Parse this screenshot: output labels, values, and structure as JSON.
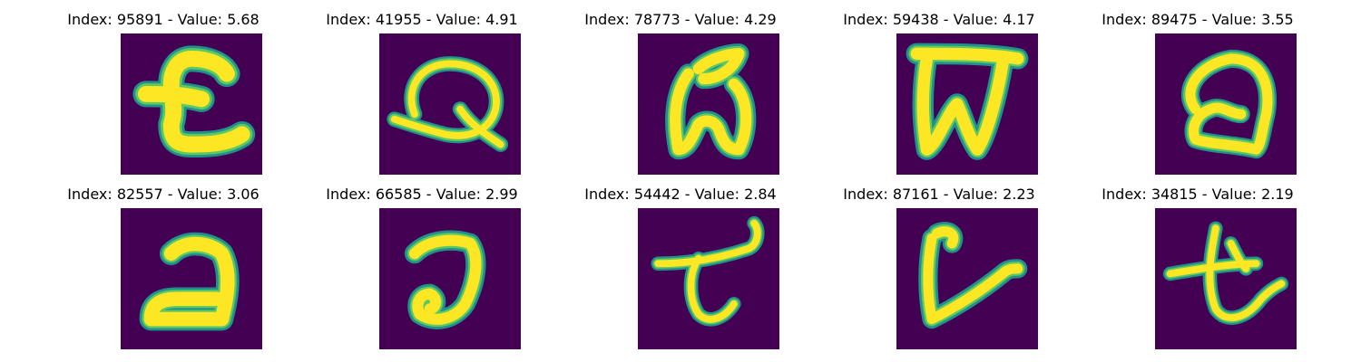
{
  "panels": [
    {
      "title": "Index: 95891 - Value: 5.68",
      "glyph": "pound-like-glyph"
    },
    {
      "title": "Index: 41955 - Value: 4.91",
      "glyph": "q-like-glyph"
    },
    {
      "title": "Index: 78773 - Value: 4.29",
      "glyph": "w-like-glyph"
    },
    {
      "title": "Index: 59438 - Value: 4.17",
      "glyph": "w-box-glyph"
    },
    {
      "title": "Index: 89475 - Value: 3.55",
      "glyph": "loop-glyph"
    },
    {
      "title": "Index: 82557 - Value: 3.06",
      "glyph": "reverse-c-glyph"
    },
    {
      "title": "Index: 66585 - Value: 2.99",
      "glyph": "reverse-c-hook-glyph"
    },
    {
      "title": "Index: 54442 - Value: 2.84",
      "glyph": "t-like-glyph"
    },
    {
      "title": "Index: 87161 - Value: 2.23",
      "glyph": "l-like-glyph"
    },
    {
      "title": "Index: 34815 - Value: 2.19",
      "glyph": "t-cross-glyph"
    }
  ],
  "colors": {
    "background_cell": "#440154",
    "stroke_outer": "#21918c",
    "stroke_mid": "#5ec962",
    "stroke_core": "#fde725"
  }
}
